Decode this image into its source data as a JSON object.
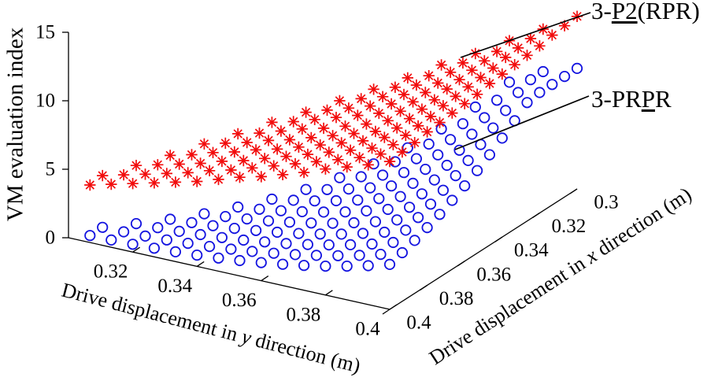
{
  "figure": {
    "z_axis": {
      "label": "VM evaluation index"
    },
    "y_axis": {
      "label_prefix": "Drive displacement in ",
      "label_var": "y",
      "label_suffix": " direction (m)"
    },
    "x_axis": {
      "label_prefix": "Drive displacement in ",
      "label_var": "x",
      "label_suffix": " direction (m)"
    },
    "annotations": [
      {
        "id": "p2rpr",
        "pre": "3-",
        "underline": "P2",
        "post": "(RPR)"
      },
      {
        "id": "prpr",
        "pre": "3-PR",
        "underline": "P",
        "post": "R"
      }
    ]
  },
  "chart_data": {
    "type": "scatter",
    "projection": "3d",
    "x_axis": {
      "label": "Drive displacement in x direction (m)",
      "range": [
        0.3,
        0.4
      ],
      "ticks": [
        0.4,
        0.38,
        0.36,
        0.34,
        0.32,
        0.3
      ]
    },
    "y_axis": {
      "label": "Drive displacement in y direction (m)",
      "range": [
        0.3,
        0.4
      ],
      "ticks": [
        0.32,
        0.34,
        0.36,
        0.38,
        0.4
      ]
    },
    "z_axis": {
      "label": "VM evaluation index",
      "range": [
        0,
        15
      ],
      "ticks": [
        0,
        5,
        10,
        15
      ]
    },
    "grid": {
      "x_start": 0.4,
      "x_step": -0.006667
    },
    "axis_color": "#000000",
    "series": [
      {
        "name": "3-P2(RPR)",
        "marker": "asterisk",
        "color": "#f20d0d",
        "rows": [
          {
            "y": 0.3067,
            "z": [
              4.2,
              4.3
            ]
          },
          {
            "y": 0.3133,
            "z": [
              4.6,
              4.7,
              4.8
            ]
          },
          {
            "y": 0.32,
            "z": [
              5.0,
              5.1,
              5.2,
              5.3
            ]
          },
          {
            "y": 0.3267,
            "z": [
              5.4,
              5.5,
              5.6,
              5.7,
              5.9
            ]
          },
          {
            "y": 0.3333,
            "z": [
              5.8,
              5.9,
              6.0,
              6.2,
              6.3,
              6.4
            ]
          },
          {
            "y": 0.34,
            "z": [
              6.2,
              6.4,
              6.5,
              6.6,
              6.7,
              6.8,
              7.0
            ]
          },
          {
            "y": 0.3467,
            "z": [
              6.7,
              6.8,
              6.9,
              7.1,
              7.2,
              7.3,
              7.4,
              7.5
            ]
          },
          {
            "y": 0.3533,
            "z": [
              7.2,
              7.3,
              7.4,
              7.5,
              7.6,
              7.8,
              7.9,
              8.0,
              8.1
            ]
          },
          {
            "y": 0.36,
            "z": [
              7.6,
              7.8,
              7.9,
              8.0,
              8.1,
              8.2,
              8.4,
              8.5,
              8.6,
              8.7
            ]
          },
          {
            "y": 0.3667,
            "z": [
              8.1,
              8.3,
              8.4,
              8.5,
              8.6,
              8.7,
              8.9,
              9.0,
              9.1,
              9.2,
              9.3
            ]
          },
          {
            "y": 0.3733,
            "z": [
              8.6,
              8.8,
              8.9,
              9.0,
              9.1,
              9.2,
              9.4,
              9.5,
              9.6,
              9.7,
              9.8,
              10.0
            ]
          },
          {
            "y": 0.38,
            "z": [
              9.2,
              9.3,
              9.4,
              9.5,
              9.6,
              9.8,
              9.9,
              10.0,
              10.1,
              10.2,
              10.4,
              10.5,
              10.6
            ]
          },
          {
            "y": 0.3867,
            "z": [
              9.7,
              9.8,
              9.9,
              10.1,
              10.2,
              10.3,
              10.4,
              10.5,
              10.7,
              10.8,
              10.9,
              11.0,
              11.1,
              11.3
            ]
          },
          {
            "y": 0.3933,
            "z": [
              10.2,
              10.4,
              10.5,
              10.6,
              10.7,
              10.8,
              11.0,
              11.1,
              11.2,
              11.3,
              11.4,
              11.6,
              11.7,
              11.8,
              11.9
            ]
          },
          {
            "y": 0.4,
            "z": [
              10.8,
              10.9,
              11.0,
              11.2,
              11.3,
              11.4,
              11.5,
              11.6,
              11.8,
              11.9,
              12.0,
              12.1,
              12.2,
              12.4,
              12.5,
              12.6
            ]
          }
        ]
      },
      {
        "name": "3-PRPR",
        "marker": "circle",
        "color": "#1414e0",
        "rows": [
          {
            "y": 0.3067,
            "z": [
              0.51,
              0.52
            ]
          },
          {
            "y": 0.3133,
            "z": [
              0.53,
              0.54,
              0.55
            ]
          },
          {
            "y": 0.32,
            "z": [
              0.57,
              0.58,
              0.61,
              0.64
            ]
          },
          {
            "y": 0.3267,
            "z": [
              0.63,
              0.65,
              0.69,
              0.74,
              0.8
            ]
          },
          {
            "y": 0.3333,
            "z": [
              0.71,
              0.75,
              0.8,
              0.86,
              0.94,
              1.05
            ]
          },
          {
            "y": 0.34,
            "z": [
              0.82,
              0.87,
              0.93,
              1.02,
              1.12,
              1.24,
              1.39
            ]
          },
          {
            "y": 0.3467,
            "z": [
              0.96,
              1.02,
              1.1,
              1.21,
              1.33,
              1.48,
              1.66,
              1.86
            ]
          },
          {
            "y": 0.3533,
            "z": [
              1.12,
              1.2,
              1.31,
              1.43,
              1.58,
              1.76,
              1.96,
              2.2,
              2.48
            ]
          },
          {
            "y": 0.36,
            "z": [
              1.32,
              1.42,
              1.54,
              1.69,
              1.87,
              2.08,
              2.32,
              2.59,
              2.9,
              3.25
            ]
          },
          {
            "y": 0.3667,
            "z": [
              1.55,
              1.67,
              1.82,
              2.0,
              2.2,
              2.44,
              2.72,
              3.03,
              3.37,
              3.76,
              4.19
            ]
          },
          {
            "y": 0.3733,
            "z": [
              1.81,
              1.96,
              2.14,
              2.34,
              2.58,
              2.86,
              3.17,
              3.51,
              3.9,
              4.33,
              4.81,
              5.33
            ]
          },
          {
            "y": 0.38,
            "z": [
              2.11,
              2.29,
              2.5,
              2.74,
              3.01,
              3.32,
              3.67,
              4.05,
              4.49,
              4.96,
              5.49,
              6.06,
              6.69
            ]
          },
          {
            "y": 0.3867,
            "z": [
              2.46,
              2.66,
              2.9,
              3.18,
              3.49,
              3.83,
              4.22,
              4.65,
              5.13,
              5.65,
              6.23,
              6.85,
              7.54,
              8.27
            ]
          },
          {
            "y": 0.3933,
            "z": [
              2.84,
              3.08,
              3.36,
              3.67,
              4.01,
              4.4,
              4.83,
              5.31,
              5.83,
              6.41,
              7.03,
              7.72,
              8.45,
              8.8,
              8.8
            ]
          },
          {
            "y": 0.4,
            "z": [
              3.28,
              3.55,
              3.86,
              4.21,
              4.59,
              5.03,
              5.5,
              6.03,
              6.6,
              7.23,
              7.91,
              8.65,
              8.8,
              8.8,
              8.8,
              8.8
            ]
          }
        ]
      }
    ]
  }
}
